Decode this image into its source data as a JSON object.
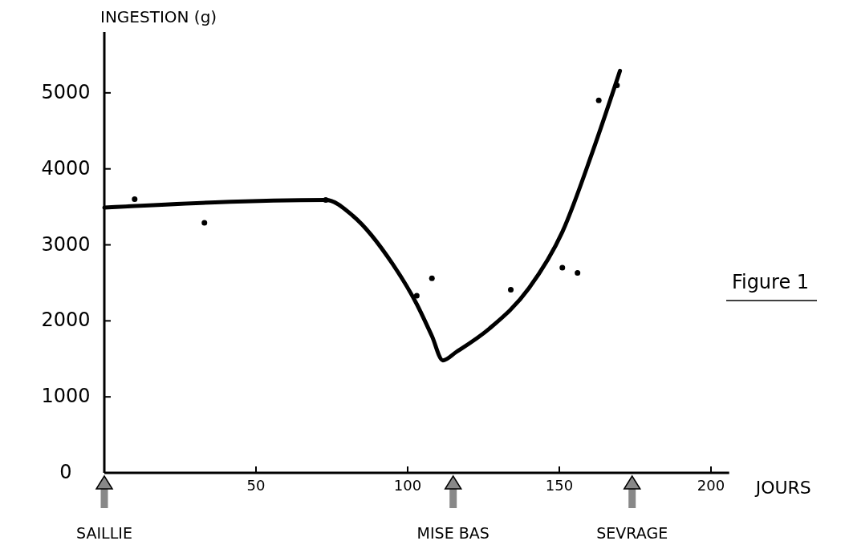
{
  "chart_data": {
    "type": "line",
    "ylabel": "INGESTION (g)",
    "xlabel": "JOURS",
    "annotations": [
      "Figure 1"
    ],
    "ref_lines": [
      {
        "axis": "x",
        "value": 0,
        "label": "SAILLIE"
      },
      {
        "axis": "x",
        "value": 115,
        "label": "MISE BAS"
      },
      {
        "axis": "x",
        "value": 174,
        "label": "SEVRAGE"
      }
    ],
    "xlim": [
      0,
      206
    ],
    "ylim": [
      0,
      5800
    ],
    "xticks": [
      50,
      100,
      150,
      200
    ],
    "yticks": [
      0,
      1000,
      2000,
      3000,
      4000,
      5000
    ],
    "grid": false,
    "series": [
      {
        "type": "line",
        "color": "#000000",
        "marker": "none",
        "x": [
          0,
          73,
          82,
          95,
          103,
          108,
          111.6,
          116,
          127,
          140,
          151,
          161,
          170
        ],
        "values": [
          3490,
          3590,
          3380,
          2750,
          2220,
          1800,
          1480,
          1590,
          1900,
          2430,
          3170,
          4230,
          5290
        ]
      },
      {
        "type": "scatter",
        "color": "#000000",
        "marker": "circle",
        "x": [
          10,
          33,
          73,
          103,
          108,
          134,
          151,
          156,
          163,
          169
        ],
        "values": [
          3600,
          3290,
          3590,
          2330,
          2560,
          2410,
          2700,
          2630,
          4900,
          5100
        ]
      }
    ]
  }
}
